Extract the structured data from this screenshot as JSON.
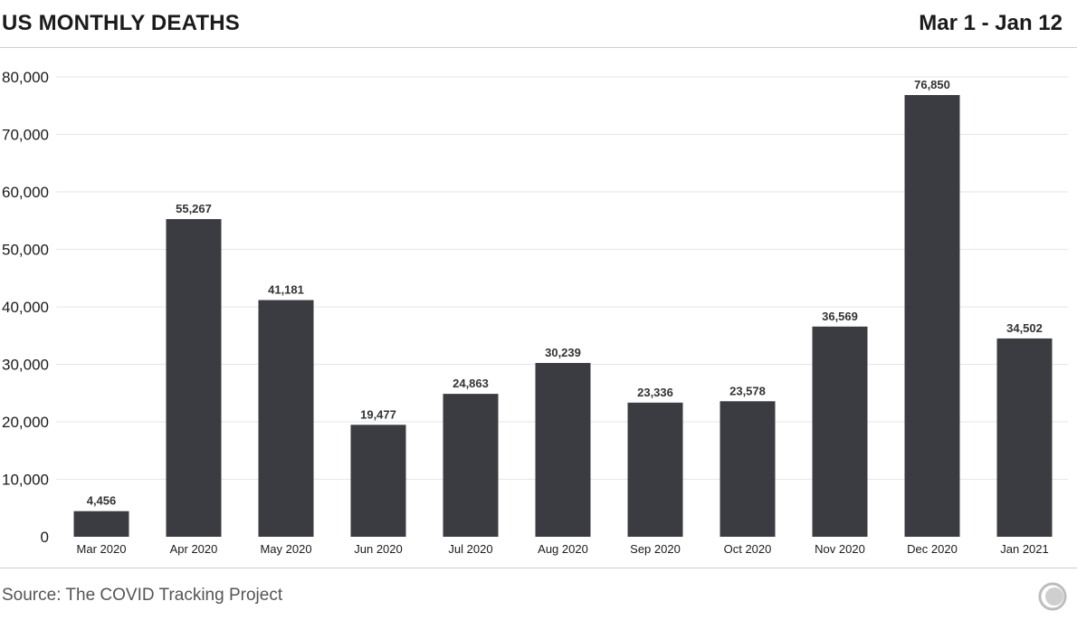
{
  "header": {
    "title": "US MONTHLY DEATHS",
    "date_range": "Mar 1 - Jan 12"
  },
  "footer": {
    "source": "Source: The COVID Tracking Project",
    "logo_icon": "covid-tracking-project-logo-icon"
  },
  "colors": {
    "bar": "#3a3c41",
    "grid": "#e6e6e6",
    "text": "#1b1b1b"
  },
  "chart_data": {
    "type": "bar",
    "categories": [
      "Mar 2020",
      "Apr 2020",
      "May 2020",
      "Jun 2020",
      "Jul 2020",
      "Aug 2020",
      "Sep 2020",
      "Oct 2020",
      "Nov 2020",
      "Dec 2020",
      "Jan 2021"
    ],
    "values": [
      4456,
      55267,
      41181,
      19477,
      24863,
      30239,
      23336,
      23578,
      36569,
      76850,
      34502
    ],
    "data_labels": [
      "4,456",
      "55,267",
      "41,181",
      "19,477",
      "24,863",
      "30,239",
      "23,336",
      "23,578",
      "36,569",
      "76,850",
      "34,502"
    ],
    "yticks": [
      0,
      10000,
      20000,
      30000,
      40000,
      50000,
      60000,
      70000,
      80000
    ],
    "ytick_labels": [
      "0",
      "10,000",
      "20,000",
      "30,000",
      "40,000",
      "50,000",
      "60,000",
      "70,000",
      "80,000"
    ],
    "ylim": [
      0,
      80000
    ],
    "grid": true,
    "legend": "none"
  }
}
